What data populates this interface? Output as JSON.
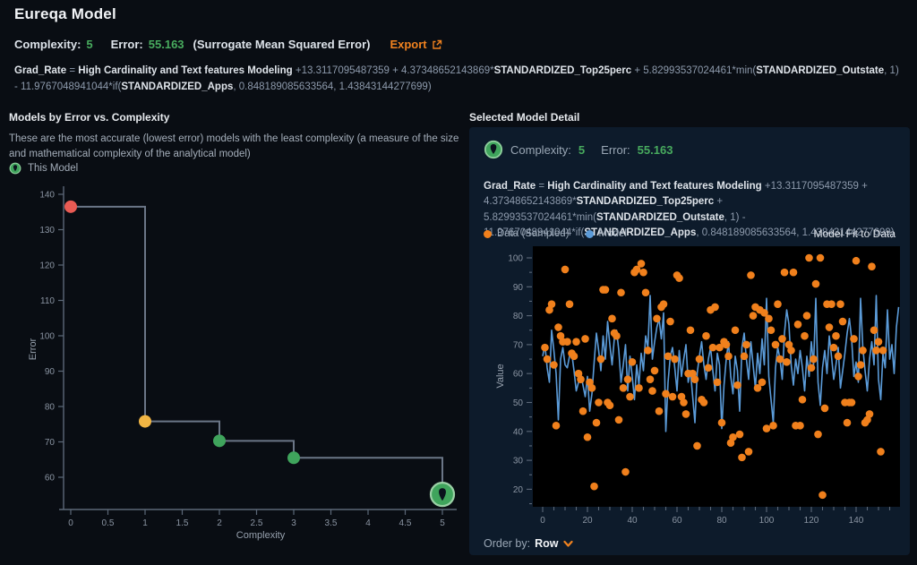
{
  "page": {
    "title": "Eureqa Model",
    "stats": {
      "complexity_label": "Complexity:",
      "complexity_value": "5",
      "error_label": "Error:",
      "error_value": "55.163",
      "error_suffix": "(Surrogate Mean Squared Error)",
      "export_label": "Export"
    },
    "formula_segments": [
      {
        "t": "Grad_Rate",
        "b": 1
      },
      {
        "t": " = ",
        "b": 0
      },
      {
        "t": "High Cardinality and Text features Modeling",
        "b": 1
      },
      {
        "t": " +13.3117095487359 + 4.37348652143869*",
        "b": 0
      },
      {
        "t": "STANDARDIZED_Top25perc",
        "b": 1
      },
      {
        "t": " + 5.82993537024461*min(",
        "b": 0
      },
      {
        "t": "STANDARDIZED_Outstate",
        "b": 1
      },
      {
        "t": ", 1) - 11.9767048941044*if(",
        "b": 0
      },
      {
        "t": "STANDARDIZED_Apps",
        "b": 1
      },
      {
        "t": ", 0.848189085633564, 1.43843144277699)",
        "b": 0
      }
    ]
  },
  "left_panel": {
    "title": "Models by Error vs. Complexity",
    "description": "These are the most accurate (lowest error) models with the least complexity (a measure of the size and mathematical complexity of the analytical model)",
    "legend_this_model": "This Model",
    "chart_data": {
      "type": "scatter",
      "subtype": "step-after-line-with-points",
      "xlabel": "Complexity",
      "ylabel": "Error",
      "x_ticks": [
        0,
        0.5,
        1,
        1.5,
        2,
        2.5,
        3,
        3.5,
        4,
        4.5,
        5
      ],
      "y_ticks": [
        60,
        70,
        80,
        90,
        100,
        110,
        120,
        130,
        140
      ],
      "xlim": [
        -0.2,
        5.15
      ],
      "ylim": [
        51,
        142
      ],
      "points": [
        {
          "x": 0,
          "y": 136.5,
          "color": "#e95b54",
          "selected": false
        },
        {
          "x": 1,
          "y": 75.8,
          "color": "#f2b644",
          "selected": false
        },
        {
          "x": 2,
          "y": 70.3,
          "color": "#3fa45c",
          "selected": false
        },
        {
          "x": 3,
          "y": 65.5,
          "color": "#3fa45c",
          "selected": false
        },
        {
          "x": 5,
          "y": 55.163,
          "color": "#3fa45c",
          "selected": true
        }
      ]
    }
  },
  "right_panel": {
    "title": "Selected Model Detail",
    "complexity_label": "Complexity:",
    "complexity_value": "5",
    "error_label": "Error:",
    "error_value": "55.163",
    "legend": [
      {
        "label": "Data (Sampled)",
        "color": "#f0801c"
      },
      {
        "label": "Model",
        "color": "#5b9bd8"
      }
    ],
    "chart_title": "Model Fit to Data",
    "order_by_label": "Order by:",
    "order_by_value": "Row",
    "chart_data": {
      "type": "line",
      "subtype": "model-fit-line-plus-scatter",
      "ylabel": "Value",
      "x_ticks": [
        0,
        20,
        40,
        60,
        80,
        100,
        120,
        140
      ],
      "y_ticks": [
        20,
        30,
        40,
        50,
        60,
        70,
        80,
        90,
        100
      ],
      "xlim": [
        -4.4,
        159.6
      ],
      "ylim": [
        14,
        104
      ],
      "series": [
        {
          "name": "Model",
          "type": "line",
          "color": "#5b9bd8",
          "x_start": 0,
          "x_step": 1,
          "values": [
            66,
            70,
            62,
            57,
            75,
            68,
            60,
            44,
            65,
            69,
            63,
            62,
            66,
            67,
            61,
            54,
            57,
            60,
            56,
            52,
            59,
            47,
            53,
            64,
            74,
            68,
            61,
            73,
            65,
            78,
            70,
            63,
            72,
            75,
            68,
            57,
            63,
            70,
            54,
            66,
            59,
            51,
            63,
            56,
            67,
            61,
            73,
            69,
            87,
            65,
            71,
            76,
            79,
            72,
            81,
            40,
            57,
            66,
            69,
            62,
            54,
            68,
            59,
            65,
            70,
            57,
            61,
            52,
            43,
            60,
            66,
            71,
            63,
            58,
            65,
            69,
            61,
            54,
            67,
            63,
            41,
            56,
            65,
            71,
            59,
            53,
            66,
            61,
            47,
            69,
            74,
            65,
            58,
            71,
            63,
            55,
            67,
            60,
            72,
            63,
            86,
            59,
            51,
            43,
            62,
            69,
            65,
            58,
            74,
            82,
            77,
            63,
            56,
            65,
            60,
            68,
            62,
            54,
            66,
            59,
            71,
            63,
            86,
            57,
            49,
            62,
            68,
            60,
            73,
            66,
            58,
            63,
            69,
            55,
            61,
            67,
            74,
            79,
            72,
            59,
            64,
            57,
            86,
            69,
            61,
            54,
            65,
            71,
            63,
            87,
            58,
            51,
            67,
            62,
            82,
            65,
            70,
            60,
            76,
            83
          ]
        },
        {
          "name": "Data (Sampled)",
          "type": "scatter",
          "color": "#f0801c",
          "points": [
            [
              1,
              69
            ],
            [
              2,
              65
            ],
            [
              3,
              82
            ],
            [
              4,
              84
            ],
            [
              5,
              63
            ],
            [
              6,
              42
            ],
            [
              7,
              76
            ],
            [
              8,
              73
            ],
            [
              9,
              71
            ],
            [
              10,
              96
            ],
            [
              11,
              71
            ],
            [
              12,
              84
            ],
            [
              13,
              67
            ],
            [
              14,
              66
            ],
            [
              15,
              71
            ],
            [
              16,
              60
            ],
            [
              17,
              58
            ],
            [
              18,
              47
            ],
            [
              19,
              72
            ],
            [
              20,
              38
            ],
            [
              21,
              57
            ],
            [
              22,
              55
            ],
            [
              23,
              21
            ],
            [
              24,
              43
            ],
            [
              25,
              50
            ],
            [
              26,
              65
            ],
            [
              27,
              89
            ],
            [
              28,
              89
            ],
            [
              29,
              50
            ],
            [
              30,
              49
            ],
            [
              31,
              79
            ],
            [
              32,
              74
            ],
            [
              33,
              73
            ],
            [
              34,
              44
            ],
            [
              35,
              88
            ],
            [
              36,
              55
            ],
            [
              37,
              26
            ],
            [
              38,
              58
            ],
            [
              39,
              52
            ],
            [
              40,
              64
            ],
            [
              41,
              95
            ],
            [
              42,
              96
            ],
            [
              43,
              55
            ],
            [
              44,
              98
            ],
            [
              45,
              95
            ],
            [
              46,
              88
            ],
            [
              47,
              68
            ],
            [
              48,
              58
            ],
            [
              49,
              54
            ],
            [
              50,
              61
            ],
            [
              51,
              79
            ],
            [
              52,
              47
            ],
            [
              53,
              83
            ],
            [
              54,
              84
            ],
            [
              55,
              53
            ],
            [
              56,
              66
            ],
            [
              57,
              78
            ],
            [
              58,
              52
            ],
            [
              59,
              65
            ],
            [
              60,
              94
            ],
            [
              61,
              93
            ],
            [
              62,
              52
            ],
            [
              63,
              50
            ],
            [
              64,
              46
            ],
            [
              65,
              60
            ],
            [
              66,
              75
            ],
            [
              67,
              60
            ],
            [
              68,
              58
            ],
            [
              69,
              35
            ],
            [
              70,
              65
            ],
            [
              71,
              51
            ],
            [
              72,
              50
            ],
            [
              73,
              73
            ],
            [
              74,
              62
            ],
            [
              75,
              82
            ],
            [
              76,
              69
            ],
            [
              77,
              83
            ],
            [
              78,
              57
            ],
            [
              79,
              69
            ],
            [
              80,
              43
            ],
            [
              81,
              71
            ],
            [
              82,
              70
            ],
            [
              83,
              66
            ],
            [
              84,
              36
            ],
            [
              85,
              38
            ],
            [
              86,
              75
            ],
            [
              87,
              56
            ],
            [
              88,
              39
            ],
            [
              89,
              31
            ],
            [
              90,
              66
            ],
            [
              91,
              70
            ],
            [
              92,
              33
            ],
            [
              93,
              94
            ],
            [
              94,
              80
            ],
            [
              95,
              83
            ],
            [
              96,
              55
            ],
            [
              97,
              82
            ],
            [
              98,
              57
            ],
            [
              99,
              81
            ],
            [
              100,
              41
            ],
            [
              101,
              79
            ],
            [
              102,
              75
            ],
            [
              103,
              42
            ],
            [
              104,
              70
            ],
            [
              105,
              84
            ],
            [
              106,
              65
            ],
            [
              107,
              72
            ],
            [
              108,
              95
            ],
            [
              109,
              64
            ],
            [
              110,
              70
            ],
            [
              111,
              68
            ],
            [
              112,
              95
            ],
            [
              113,
              42
            ],
            [
              114,
              77
            ],
            [
              115,
              42
            ],
            [
              116,
              51
            ],
            [
              117,
              73
            ],
            [
              118,
              80
            ],
            [
              119,
              100
            ],
            [
              120,
              62
            ],
            [
              121,
              65
            ],
            [
              122,
              91
            ],
            [
              123,
              39
            ],
            [
              124,
              100
            ],
            [
              125,
              18
            ],
            [
              126,
              48
            ],
            [
              127,
              84
            ],
            [
              128,
              76
            ],
            [
              129,
              84
            ],
            [
              130,
              69
            ],
            [
              131,
              73
            ],
            [
              132,
              66
            ],
            [
              133,
              84
            ],
            [
              134,
              78
            ],
            [
              135,
              50
            ],
            [
              136,
              43
            ],
            [
              137,
              50
            ],
            [
              138,
              50
            ],
            [
              139,
              72
            ],
            [
              140,
              99
            ],
            [
              141,
              59
            ],
            [
              142,
              63
            ],
            [
              143,
              68
            ],
            [
              144,
              43
            ],
            [
              145,
              44
            ],
            [
              146,
              46
            ],
            [
              147,
              97
            ],
            [
              148,
              75
            ],
            [
              149,
              68
            ],
            [
              150,
              71
            ],
            [
              151,
              33
            ],
            [
              152,
              68
            ]
          ]
        }
      ]
    }
  },
  "colors": {
    "page_bg": "#090d13",
    "card_bg": "#0d1b2b",
    "plot_bg": "#000000",
    "accent_green": "#48ab5e",
    "accent_orange": "#f0821f",
    "model_blue": "#5b9bd8",
    "step_line": "#6b7687",
    "point_red": "#e95b54",
    "point_yellow": "#f2b644",
    "point_green": "#3fa45c"
  }
}
